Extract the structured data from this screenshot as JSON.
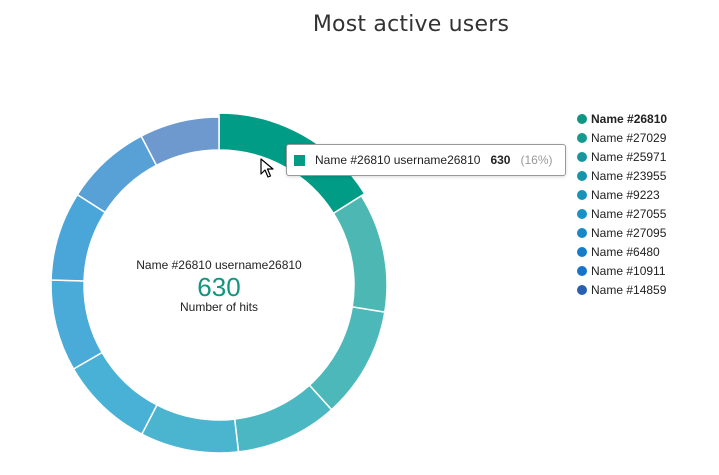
{
  "chart_data": {
    "type": "pie",
    "title": "Most active users",
    "categories": [
      "Name #26810",
      "Name #27029",
      "Name #25971",
      "Name #23955",
      "Name #9223",
      "Name #27055",
      "Name #27095",
      "Name #6480",
      "Name #10911",
      "Name #14859"
    ],
    "values": [
      630,
      450,
      420,
      385,
      370,
      355,
      345,
      335,
      325,
      300
    ],
    "colors": [
      "#009c86",
      "#4db8b3",
      "#4db8b9",
      "#4bb7c2",
      "#4bb5cf",
      "#4ab1d6",
      "#4aabd9",
      "#4aa6d8",
      "#58a1d7",
      "#6e99cf"
    ],
    "legend_colors": [
      "#0e9683",
      "#169a90",
      "#17979d",
      "#1696aa",
      "#1893b8",
      "#1891c4",
      "#1888c8",
      "#167dc9",
      "#1774c9",
      "#2a5eb0"
    ],
    "legend_position": "right",
    "center": {
      "label": "Name #26810 username26810",
      "value": "630",
      "metric": "Number of hits"
    },
    "tooltip": {
      "name": "Name #26810 username26810",
      "value": "630",
      "percent": "(16%)"
    },
    "highlighted_index": 0
  }
}
